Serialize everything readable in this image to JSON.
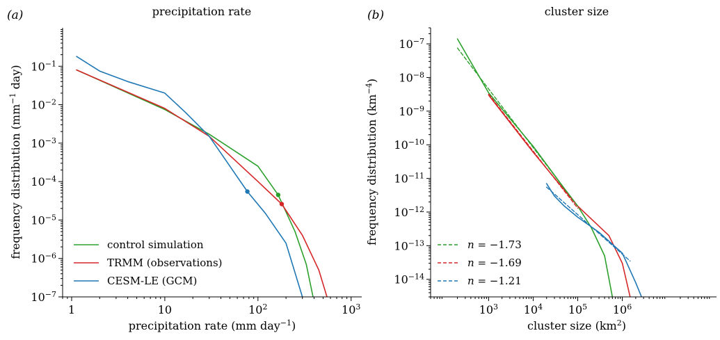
{
  "chart_data": [
    {
      "type": "line",
      "panel_label": "(a)",
      "title": "precipitation rate",
      "xlabel": "precipitation rate (mm day⁻¹)",
      "ylabel": "frequency distribution  (mm⁻¹ day)",
      "xscale": "log",
      "yscale": "log",
      "xlim": [
        0.8,
        1300
      ],
      "ylim": [
        1e-07,
        1
      ],
      "grid": false,
      "legend_position": "lower-left",
      "x_ticks": [
        {
          "value": 1,
          "label": "1"
        },
        {
          "value": 10,
          "label": "10"
        },
        {
          "value": 100,
          "label": "10",
          "sup": "2"
        },
        {
          "value": 1000,
          "label": "10",
          "sup": "3"
        }
      ],
      "y_ticks": [
        {
          "value": 1e-07,
          "label": "10",
          "sup": "−7"
        },
        {
          "value": 1e-06,
          "label": "10",
          "sup": "−6"
        },
        {
          "value": 1e-05,
          "label": "10",
          "sup": "−5"
        },
        {
          "value": 0.0001,
          "label": "10",
          "sup": "−4"
        },
        {
          "value": 0.001,
          "label": "10",
          "sup": "−3"
        },
        {
          "value": 0.01,
          "label": "10",
          "sup": "−2"
        },
        {
          "value": 0.1,
          "label": "10",
          "sup": "−1"
        }
      ],
      "series": [
        {
          "name": "control simulation",
          "color": "#2ca02c",
          "style": "solid",
          "x": [
            1.13,
            10,
            30,
            100,
            165,
            250,
            330,
            390
          ],
          "y": [
            0.08,
            0.0075,
            0.0017,
            0.00025,
            4.5e-05,
            5e-06,
            7e-07,
            1e-07
          ],
          "marker": {
            "x": 165,
            "y": 4.5e-05
          }
        },
        {
          "name": "TRMM (observations)",
          "color": "#d62728",
          "style": "solid",
          "x": [
            1.13,
            10,
            30,
            100,
            180,
            300,
            450,
            550
          ],
          "y": [
            0.08,
            0.008,
            0.0015,
            0.0001,
            2.6e-05,
            4e-06,
            5e-07,
            1e-07
          ],
          "marker": {
            "x": 180,
            "y": 2.6e-05
          }
        },
        {
          "name": "CESM-LE (GCM)",
          "color": "#1f77b4",
          "style": "solid",
          "x": [
            1.13,
            2,
            4,
            10,
            17,
            30,
            50,
            77,
            120,
            200,
            300
          ],
          "y": [
            0.18,
            0.075,
            0.04,
            0.02,
            0.006,
            0.0015,
            0.00025,
            5.5e-05,
            1.5e-05,
            2.5e-06,
            1e-07
          ],
          "marker": {
            "x": 77,
            "y": 5.5e-05
          }
        }
      ]
    },
    {
      "type": "line",
      "panel_label": "(b)",
      "title": "cluster size",
      "xlabel": "cluster size (km²)",
      "ylabel": "frequency distribution  (km⁻⁴)",
      "xscale": "log",
      "yscale": "log",
      "xlim": [
        50,
        130000000.0
      ],
      "ylim": [
        3e-15,
        3e-07
      ],
      "grid": false,
      "legend_position": "lower-left",
      "x_ticks": [
        {
          "value": 1000,
          "label": "10",
          "sup": "3"
        },
        {
          "value": 10000,
          "label": "10",
          "sup": "4"
        },
        {
          "value": 100000,
          "label": "10",
          "sup": "5"
        },
        {
          "value": 1000000,
          "label": "10",
          "sup": "6"
        }
      ],
      "y_ticks": [
        {
          "value": 1e-14,
          "label": "10",
          "sup": "−14"
        },
        {
          "value": 1e-13,
          "label": "10",
          "sup": "−13"
        },
        {
          "value": 1e-12,
          "label": "10",
          "sup": "−12"
        },
        {
          "value": 1e-11,
          "label": "10",
          "sup": "−11"
        },
        {
          "value": 1e-10,
          "label": "10",
          "sup": "−10"
        },
        {
          "value": 1e-09,
          "label": "10",
          "sup": "−9"
        },
        {
          "value": 1e-08,
          "label": "10",
          "sup": "−8"
        },
        {
          "value": 1e-07,
          "label": "10",
          "sup": "−7"
        }
      ],
      "series": [
        {
          "name": "control simulation",
          "color": "#2ca02c",
          "style": "solid",
          "x": [
            200,
            1000,
            10000,
            50000,
            100000,
            200000,
            400000,
            600000
          ],
          "y": [
            1.4e-07,
            3.5e-09,
            9e-11,
            5e-12,
            1.5e-12,
            3.5e-13,
            5e-14,
            3e-15
          ]
        },
        {
          "name": "TRMM (observations)",
          "color": "#d62728",
          "style": "solid",
          "x": [
            1000,
            10000,
            100000,
            500000,
            1000000,
            1500000
          ],
          "y": [
            3e-09,
            6e-11,
            1.5e-12,
            2e-13,
            3e-14,
            3e-15
          ]
        },
        {
          "name": "CESM-LE (GCM)",
          "color": "#1f77b4",
          "style": "solid",
          "x": [
            20000,
            30000,
            50000,
            100000,
            300000,
            1000000,
            2000000,
            2700000
          ],
          "y": [
            7e-12,
            3e-12,
            1.5e-12,
            7e-13,
            2.5e-13,
            6e-14,
            8e-15,
            3e-15
          ]
        },
        {
          "name": "n = −1.73",
          "legend_n": "−1.73",
          "color": "#2ca02c",
          "style": "dashed",
          "x": [
            200,
            100000
          ],
          "y": [
            7.5e-08,
            1.5e-12
          ]
        },
        {
          "name": "n = −1.69",
          "legend_n": "−1.69",
          "color": "#d62728",
          "style": "dashed",
          "x": [
            1000,
            100000
          ],
          "y": [
            3.2e-09,
            1.3e-12
          ]
        },
        {
          "name": "n = −1.21",
          "legend_n": "−1.21",
          "color": "#1f77b4",
          "style": "dashed",
          "x": [
            20000,
            1500000
          ],
          "y": [
            5.5e-12,
            3.5e-14
          ]
        }
      ]
    }
  ]
}
